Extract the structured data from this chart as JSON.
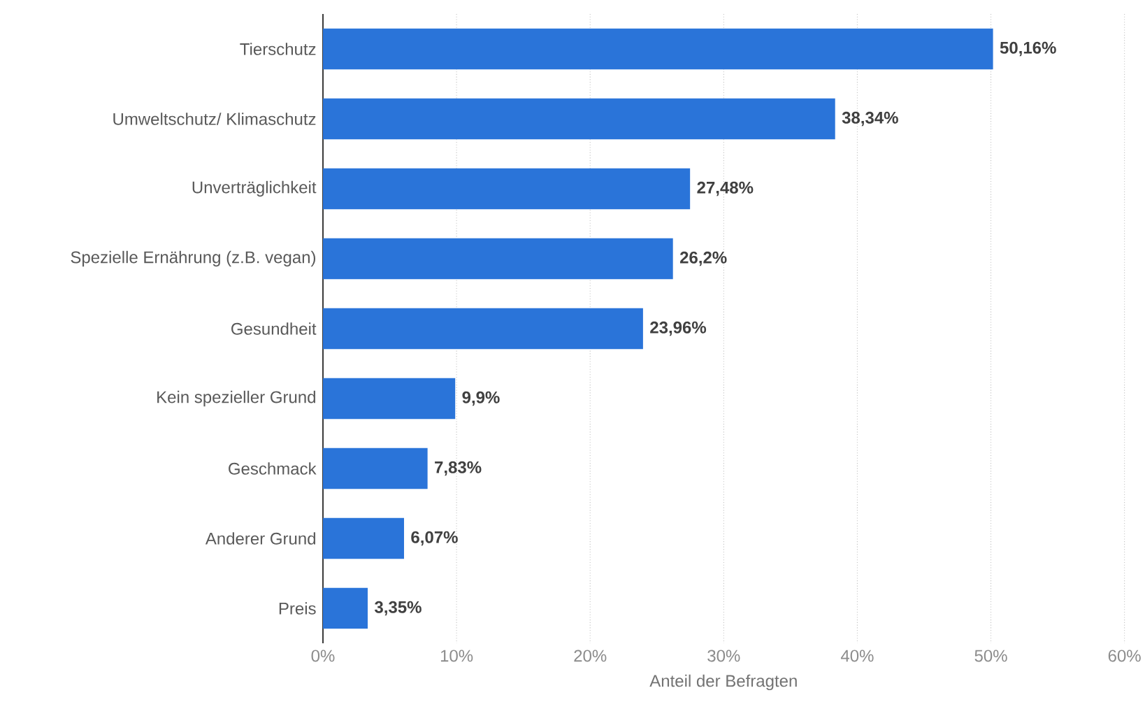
{
  "chart_data": {
    "type": "bar",
    "orientation": "horizontal",
    "xlabel": "Anteil der Befragten",
    "categories": [
      "Tierschutz",
      "Umweltschutz/ Klimaschutz",
      "Unverträglichkeit",
      "Spezielle Ernährung (z.B. vegan)",
      "Gesundheit",
      "Kein spezieller Grund",
      "Geschmack",
      "Anderer Grund",
      "Preis"
    ],
    "values": [
      50.16,
      38.34,
      27.48,
      26.2,
      23.96,
      9.9,
      7.83,
      6.07,
      3.35
    ],
    "value_labels": [
      "50,16%",
      "38,34%",
      "27,48%",
      "26,2%",
      "23,96%",
      "9,9%",
      "7,83%",
      "6,07%",
      "3,35%"
    ],
    "color": "#2a74d9",
    "xlim": [
      0,
      60
    ],
    "xticks": [
      {
        "value": 0,
        "label": "0%"
      },
      {
        "value": 10,
        "label": "10%"
      },
      {
        "value": 20,
        "label": "20%"
      },
      {
        "value": 30,
        "label": "30%"
      },
      {
        "value": 40,
        "label": "40%"
      },
      {
        "value": 50,
        "label": "50%"
      },
      {
        "value": 60,
        "label": "60%"
      }
    ],
    "grid": "x"
  }
}
